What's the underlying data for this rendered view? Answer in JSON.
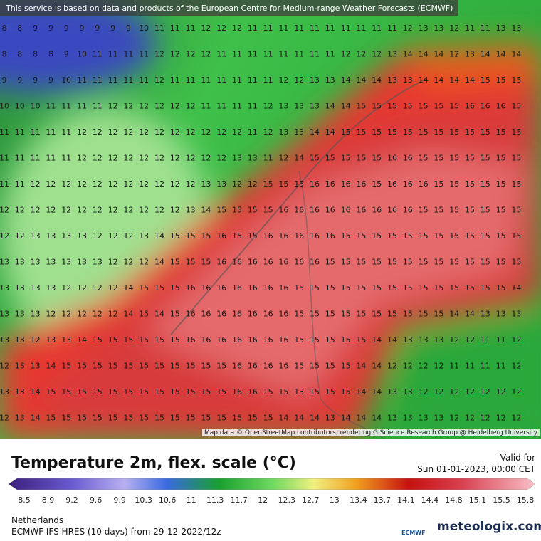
{
  "header": {
    "notice": "This service is based on data and products of the European Centre for Medium-range Weather Forecasts (ECMWF)"
  },
  "map": {
    "attribution": "Map data © OpenStreetMap contributors, rendering GIScience Research Group @ Heidelberg University",
    "grid": [
      [
        8,
        8,
        9,
        9,
        9,
        9,
        9,
        9,
        9,
        10,
        11,
        11,
        11,
        12,
        12,
        12,
        11,
        11,
        11,
        11,
        11,
        11,
        11,
        11,
        11,
        11,
        12,
        13,
        13,
        12,
        11,
        11,
        13,
        13
      ],
      [
        8,
        8,
        8,
        8,
        9,
        10,
        11,
        11,
        11,
        11,
        12,
        12,
        12,
        12,
        11,
        11,
        11,
        11,
        11,
        11,
        11,
        11,
        12,
        12,
        12,
        13,
        14,
        14,
        14,
        12,
        13,
        14,
        14,
        14
      ],
      [
        9,
        9,
        9,
        9,
        10,
        11,
        11,
        11,
        11,
        11,
        12,
        11,
        11,
        11,
        11,
        11,
        11,
        11,
        12,
        12,
        13,
        13,
        14,
        14,
        14,
        13,
        13,
        14,
        14,
        14,
        14,
        15,
        15,
        15
      ],
      [
        10,
        10,
        10,
        11,
        11,
        11,
        11,
        12,
        12,
        12,
        12,
        12,
        12,
        11,
        11,
        11,
        11,
        12,
        13,
        13,
        13,
        14,
        14,
        15,
        15,
        15,
        15,
        15,
        15,
        15,
        16,
        16,
        16,
        15
      ],
      [
        11,
        11,
        11,
        11,
        11,
        12,
        12,
        12,
        12,
        12,
        12,
        12,
        12,
        12,
        12,
        12,
        11,
        12,
        13,
        13,
        14,
        14,
        15,
        15,
        15,
        15,
        15,
        15,
        15,
        15,
        15,
        15,
        15,
        15
      ],
      [
        11,
        11,
        11,
        11,
        11,
        12,
        12,
        12,
        12,
        12,
        12,
        12,
        12,
        12,
        12,
        13,
        13,
        11,
        12,
        14,
        15,
        15,
        15,
        15,
        15,
        16,
        16,
        15,
        15,
        15,
        15,
        15,
        15,
        15
      ],
      [
        11,
        11,
        12,
        12,
        12,
        12,
        12,
        12,
        12,
        12,
        12,
        12,
        12,
        13,
        13,
        12,
        12,
        15,
        15,
        15,
        16,
        16,
        16,
        16,
        15,
        16,
        16,
        16,
        15,
        15,
        15,
        15,
        15,
        15
      ],
      [
        12,
        12,
        12,
        12,
        12,
        12,
        12,
        12,
        12,
        12,
        12,
        12,
        13,
        14,
        15,
        15,
        15,
        15,
        16,
        16,
        16,
        16,
        16,
        16,
        16,
        16,
        16,
        15,
        15,
        15,
        15,
        15,
        15,
        15
      ],
      [
        12,
        12,
        13,
        13,
        13,
        13,
        12,
        12,
        12,
        13,
        14,
        15,
        15,
        15,
        16,
        15,
        15,
        16,
        16,
        16,
        16,
        16,
        15,
        15,
        15,
        15,
        15,
        15,
        15,
        15,
        15,
        15,
        15,
        15
      ],
      [
        13,
        13,
        13,
        13,
        13,
        13,
        13,
        12,
        12,
        12,
        14,
        15,
        15,
        15,
        16,
        16,
        16,
        16,
        16,
        16,
        16,
        15,
        15,
        15,
        15,
        15,
        15,
        15,
        15,
        15,
        15,
        15,
        15,
        15
      ],
      [
        13,
        13,
        13,
        13,
        12,
        12,
        12,
        12,
        14,
        15,
        15,
        15,
        16,
        16,
        16,
        16,
        16,
        16,
        16,
        15,
        15,
        15,
        15,
        15,
        15,
        15,
        15,
        15,
        15,
        15,
        15,
        15,
        15,
        14
      ],
      [
        13,
        13,
        13,
        12,
        12,
        12,
        12,
        12,
        14,
        15,
        14,
        15,
        16,
        16,
        16,
        16,
        16,
        16,
        16,
        15,
        15,
        15,
        15,
        15,
        15,
        15,
        15,
        15,
        15,
        14,
        14,
        13,
        13,
        13
      ],
      [
        13,
        13,
        12,
        13,
        13,
        14,
        15,
        15,
        15,
        15,
        15,
        15,
        16,
        16,
        16,
        16,
        16,
        16,
        16,
        15,
        15,
        15,
        15,
        15,
        14,
        14,
        13,
        13,
        13,
        12,
        12,
        11,
        11,
        12
      ],
      [
        12,
        13,
        13,
        14,
        15,
        15,
        15,
        15,
        15,
        15,
        15,
        15,
        15,
        15,
        15,
        16,
        16,
        16,
        16,
        15,
        15,
        15,
        15,
        14,
        14,
        12,
        12,
        12,
        12,
        11,
        11,
        11,
        11,
        12
      ],
      [
        13,
        13,
        14,
        15,
        15,
        15,
        15,
        15,
        15,
        15,
        15,
        15,
        15,
        15,
        15,
        16,
        16,
        15,
        15,
        13,
        15,
        15,
        15,
        14,
        14,
        13,
        13,
        12,
        12,
        12,
        12,
        12,
        12,
        12
      ],
      [
        12,
        13,
        14,
        15,
        15,
        15,
        15,
        15,
        15,
        15,
        15,
        15,
        15,
        15,
        15,
        15,
        15,
        15,
        14,
        14,
        14,
        13,
        14,
        14,
        14,
        13,
        13,
        13,
        13,
        12,
        12,
        12,
        12,
        12
      ]
    ]
  },
  "legend": {
    "title": "Temperature 2m, flex. scale (°C)",
    "valid_label": "Valid for",
    "valid_time": "Sun 01-01-2023, 00:00 CET",
    "scale": [
      8.5,
      8.9,
      9.2,
      9.6,
      9.9,
      10.3,
      10.6,
      11,
      11.3,
      11.7,
      12,
      12.3,
      12.7,
      13,
      13.4,
      13.7,
      14.1,
      14.4,
      14.8,
      15.1,
      15.5,
      15.8
    ]
  },
  "footer": {
    "region": "Netherlands",
    "model": "ECMWF IFS HRES (10 days) from 29-12-2022/12z",
    "ecmwf_logo": "ECMWF",
    "brand": "meteologix.com"
  }
}
